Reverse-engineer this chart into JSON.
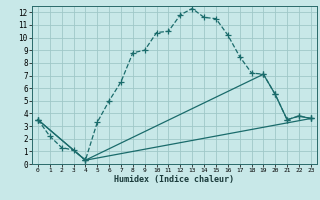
{
  "title": "",
  "xlabel": "Humidex (Indice chaleur)",
  "background_color": "#c8e8e8",
  "grid_color": "#a0c8c8",
  "line_color": "#1a6b6b",
  "xlim": [
    -0.5,
    23.5
  ],
  "ylim": [
    0,
    12.5
  ],
  "xticks": [
    0,
    1,
    2,
    3,
    4,
    5,
    6,
    7,
    8,
    9,
    10,
    11,
    12,
    13,
    14,
    15,
    16,
    17,
    18,
    19,
    20,
    21,
    22,
    23
  ],
  "yticks": [
    0,
    1,
    2,
    3,
    4,
    5,
    6,
    7,
    8,
    9,
    10,
    11,
    12
  ],
  "line1_x": [
    0,
    1,
    2,
    3,
    4,
    5,
    6,
    7,
    8,
    9,
    10,
    11,
    12,
    13,
    14,
    15,
    16,
    17,
    18,
    19,
    20,
    21,
    22,
    23
  ],
  "line1_y": [
    3.5,
    2.2,
    1.3,
    1.1,
    0.3,
    3.3,
    5.0,
    6.5,
    8.8,
    9.0,
    10.4,
    10.5,
    11.8,
    12.3,
    11.6,
    11.5,
    10.2,
    8.5,
    7.2,
    7.1,
    5.5,
    3.5,
    3.8,
    3.6
  ],
  "line2_x": [
    0,
    4,
    19,
    20,
    21,
    22,
    23
  ],
  "line2_y": [
    3.5,
    0.3,
    7.1,
    5.5,
    3.5,
    3.8,
    3.6
  ],
  "line3_x": [
    0,
    4,
    23
  ],
  "line3_y": [
    3.5,
    0.3,
    3.6
  ]
}
